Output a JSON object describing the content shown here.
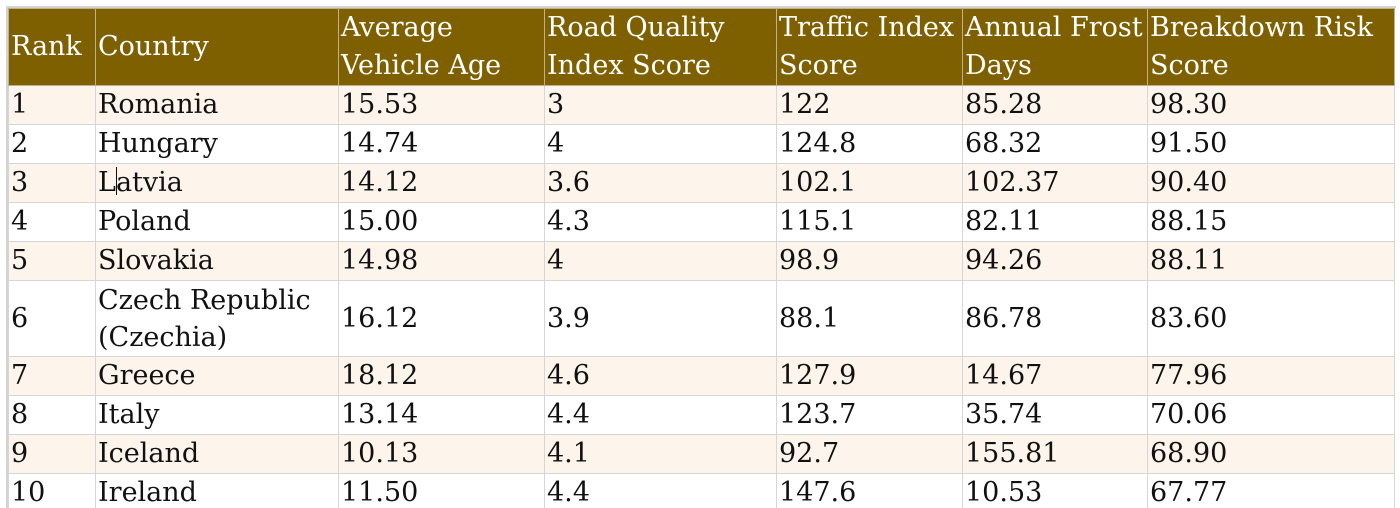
{
  "table": {
    "headers": [
      "Rank",
      "Country",
      "Average Vehicle Age",
      "Road Quality Index Score",
      "Traffic Index Score",
      "Annual Frost Days",
      "Breakdown Risk Score"
    ],
    "rows": [
      [
        "1",
        "Romania",
        "15.53",
        "3",
        "122",
        "85.28",
        "98.30"
      ],
      [
        "2",
        "Hungary",
        "14.74",
        "4",
        "124.8",
        "68.32",
        "91.50"
      ],
      [
        "3",
        "Latvia",
        "14.12",
        "3.6",
        "102.1",
        "102.37",
        "90.40"
      ],
      [
        "4",
        "Poland",
        "15.00",
        "4.3",
        "115.1",
        "82.11",
        "88.15"
      ],
      [
        "5",
        "Slovakia",
        "14.98",
        "4",
        "98.9",
        "94.26",
        "88.11"
      ],
      [
        "6",
        "Czech Republic (Czechia)",
        "16.12",
        "3.9",
        "88.1",
        "86.78",
        "83.60"
      ],
      [
        "7",
        "Greece",
        "18.12",
        "4.6",
        "127.9",
        "14.67",
        "77.96"
      ],
      [
        "8",
        "Italy",
        "13.14",
        "4.4",
        "123.7",
        "35.74",
        "70.06"
      ],
      [
        "9",
        "Iceland",
        "10.13",
        "4.1",
        "92.7",
        "155.81",
        "68.90"
      ],
      [
        "10",
        "Ireland",
        "11.50",
        "4.4",
        "147.6",
        "10.53",
        "67.77"
      ]
    ]
  },
  "colors": {
    "header_bg": "#7f6000",
    "header_text": "#ffffff",
    "band_row_bg": "#fdf5ec",
    "plain_row_bg": "#ffffff"
  }
}
